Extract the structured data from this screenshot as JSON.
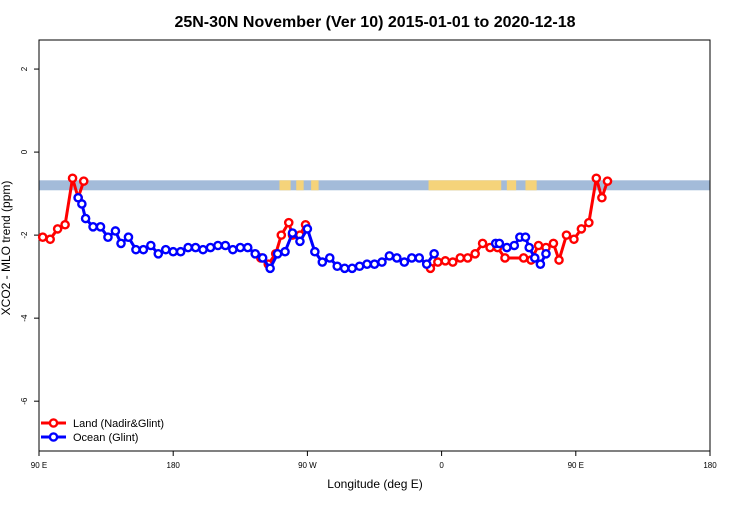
{
  "chart_data": {
    "type": "line",
    "title": "25N-30N November (Ver 10)   2015-01-01 to 2020-12-18",
    "xlabel": "Longitude (deg E)",
    "ylabel": "XCO2 - MLO trend (ppm)",
    "xlim": [
      90,
      450
    ],
    "ylim": [
      -7.2,
      2.7
    ],
    "x_ticks": [
      {
        "value": 90,
        "label": "90 E"
      },
      {
        "value": 162,
        "label": "180"
      },
      {
        "value": 234,
        "label": "90 W"
      },
      {
        "value": 306,
        "label": "0"
      },
      {
        "value": 378,
        "label": "90 E"
      },
      {
        "value": 450,
        "label": "180"
      }
    ],
    "y_ticks": [
      {
        "value": 2,
        "label": "2"
      },
      {
        "value": 0,
        "label": "0"
      },
      {
        "value": -2,
        "label": "-2"
      },
      {
        "value": -4,
        "label": "-4"
      },
      {
        "value": -6,
        "label": "-6"
      }
    ],
    "legend_position": "bottom-left",
    "colors": {
      "land": "#ff0000",
      "ocean": "#0000ff",
      "map_ocean": "#a3bbd9",
      "map_land": "#f5d37a"
    },
    "map_strip": {
      "y_range": [
        -0.68,
        -0.92
      ],
      "land_segments": [
        [
          219,
          225
        ],
        [
          228,
          232
        ],
        [
          236,
          240
        ],
        [
          299,
          338
        ],
        [
          341,
          346
        ],
        [
          351,
          357
        ]
      ]
    },
    "series": [
      {
        "name": "Land (Nadir&Glint)",
        "color": "#ff0000",
        "points": [
          [
            92,
            -2.05
          ],
          [
            96,
            -2.1
          ],
          [
            100,
            -1.85
          ],
          [
            104,
            -1.75
          ],
          [
            108,
            -0.63
          ],
          [
            111,
            -1.1
          ],
          [
            114,
            -0.7
          ],
          [
            209,
            -2.55
          ],
          [
            213,
            -2.7
          ],
          [
            217,
            -2.45
          ],
          [
            220,
            -2.0
          ],
          [
            224,
            -1.7
          ],
          [
            226,
            -2.0
          ],
          [
            230,
            -2.0
          ],
          [
            233,
            -1.75
          ],
          [
            300,
            -2.8
          ],
          [
            304,
            -2.65
          ],
          [
            308,
            -2.62
          ],
          [
            312,
            -2.65
          ],
          [
            316,
            -2.55
          ],
          [
            320,
            -2.55
          ],
          [
            324,
            -2.45
          ],
          [
            328,
            -2.2
          ],
          [
            332,
            -2.3
          ],
          [
            336,
            -2.3
          ],
          [
            340,
            -2.55
          ],
          [
            350,
            -2.55
          ],
          [
            354,
            -2.6
          ],
          [
            358,
            -2.25
          ],
          [
            362,
            -2.3
          ],
          [
            366,
            -2.2
          ],
          [
            369,
            -2.6
          ],
          [
            373,
            -2.0
          ],
          [
            377,
            -2.1
          ],
          [
            381,
            -1.85
          ],
          [
            385,
            -1.7
          ],
          [
            389,
            -0.63
          ],
          [
            392,
            -1.1
          ],
          [
            395,
            -0.7
          ]
        ]
      },
      {
        "name": "Ocean (Glint)",
        "color": "#0000ff",
        "points": [
          [
            111,
            -1.1
          ],
          [
            113,
            -1.25
          ],
          [
            115,
            -1.6
          ],
          [
            119,
            -1.8
          ],
          [
            123,
            -1.8
          ],
          [
            127,
            -2.05
          ],
          [
            131,
            -1.9
          ],
          [
            134,
            -2.2
          ],
          [
            138,
            -2.05
          ],
          [
            142,
            -2.35
          ],
          [
            146,
            -2.35
          ],
          [
            150,
            -2.25
          ],
          [
            154,
            -2.45
          ],
          [
            158,
            -2.35
          ],
          [
            162,
            -2.4
          ],
          [
            166,
            -2.4
          ],
          [
            170,
            -2.3
          ],
          [
            174,
            -2.3
          ],
          [
            178,
            -2.35
          ],
          [
            182,
            -2.3
          ],
          [
            186,
            -2.25
          ],
          [
            190,
            -2.25
          ],
          [
            194,
            -2.35
          ],
          [
            198,
            -2.3
          ],
          [
            202,
            -2.3
          ],
          [
            206,
            -2.45
          ],
          [
            210,
            -2.55
          ],
          [
            214,
            -2.8
          ],
          [
            218,
            -2.45
          ],
          [
            222,
            -2.4
          ],
          [
            226,
            -1.95
          ],
          [
            230,
            -2.15
          ],
          [
            234,
            -1.85
          ],
          [
            238,
            -2.4
          ],
          [
            242,
            -2.65
          ],
          [
            246,
            -2.55
          ],
          [
            250,
            -2.75
          ],
          [
            254,
            -2.8
          ],
          [
            258,
            -2.8
          ],
          [
            262,
            -2.75
          ],
          [
            266,
            -2.7
          ],
          [
            270,
            -2.7
          ],
          [
            274,
            -2.65
          ],
          [
            278,
            -2.5
          ],
          [
            282,
            -2.55
          ],
          [
            286,
            -2.65
          ],
          [
            290,
            -2.55
          ],
          [
            294,
            -2.55
          ],
          [
            298,
            -2.7
          ],
          [
            302,
            -2.45
          ],
          [
            335,
            -2.2
          ],
          [
            337,
            -2.2
          ],
          [
            341,
            -2.3
          ],
          [
            345,
            -2.25
          ],
          [
            348,
            -2.05
          ],
          [
            351,
            -2.05
          ],
          [
            353,
            -2.3
          ],
          [
            356,
            -2.55
          ],
          [
            359,
            -2.7
          ],
          [
            362,
            -2.45
          ]
        ]
      }
    ]
  }
}
